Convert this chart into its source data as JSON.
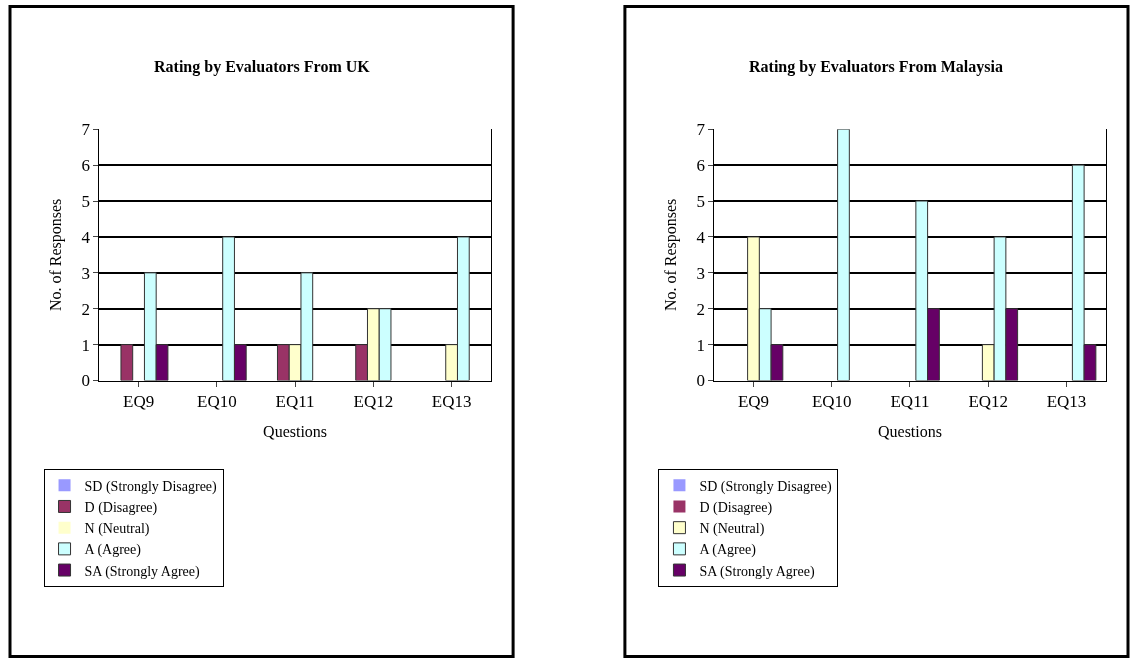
{
  "chart_data": [
    {
      "type": "bar",
      "title": "Rating by Evaluators From UK",
      "xlabel": "Questions",
      "ylabel": "No. of Responses",
      "categories": [
        "EQ9",
        "EQ10",
        "EQ11",
        "EQ12",
        "EQ13"
      ],
      "ylim": [
        0,
        7
      ],
      "yticks": [
        0,
        1,
        2,
        3,
        4,
        5,
        6,
        7
      ],
      "grid": "y",
      "legend": "bottom",
      "series": [
        {
          "name": "SD (Strongly Disagree)",
          "color": "#9999ff",
          "values": [
            0,
            0,
            0,
            0,
            0
          ]
        },
        {
          "name": "D (Disagree)",
          "color": "#993366",
          "values": [
            1,
            0,
            1,
            1,
            0
          ]
        },
        {
          "name": "N (Neutral)",
          "color": "#ffffcc",
          "values": [
            0,
            0,
            1,
            2,
            1
          ]
        },
        {
          "name": "A (Agree)",
          "color": "#ccffff",
          "values": [
            3,
            4,
            3,
            2,
            4
          ]
        },
        {
          "name": "SA (Strongly Agree)",
          "color": "#660066",
          "values": [
            1,
            1,
            0,
            0,
            0
          ]
        }
      ]
    },
    {
      "type": "bar",
      "title": "Rating by Evaluators From Malaysia",
      "xlabel": "Questions",
      "ylabel": "No. of Responses",
      "categories": [
        "EQ9",
        "EQ10",
        "EQ11",
        "EQ12",
        "EQ13"
      ],
      "ylim": [
        0,
        7
      ],
      "yticks": [
        0,
        1,
        2,
        3,
        4,
        5,
        6,
        7
      ],
      "grid": "y",
      "legend": "bottom",
      "series": [
        {
          "name": "SD (Strongly Disagree)",
          "color": "#9999ff",
          "values": [
            0,
            0,
            0,
            0,
            0
          ]
        },
        {
          "name": "D (Disagree)",
          "color": "#993366",
          "values": [
            0,
            0,
            0,
            0,
            0
          ]
        },
        {
          "name": "N (Neutral)",
          "color": "#ffffcc",
          "values": [
            4,
            0,
            0,
            1,
            0
          ]
        },
        {
          "name": "A (Agree)",
          "color": "#ccffff",
          "values": [
            2,
            7,
            5,
            4,
            6
          ]
        },
        {
          "name": "SA (Strongly Agree)",
          "color": "#660066",
          "values": [
            1,
            0,
            2,
            2,
            1
          ]
        }
      ]
    }
  ]
}
